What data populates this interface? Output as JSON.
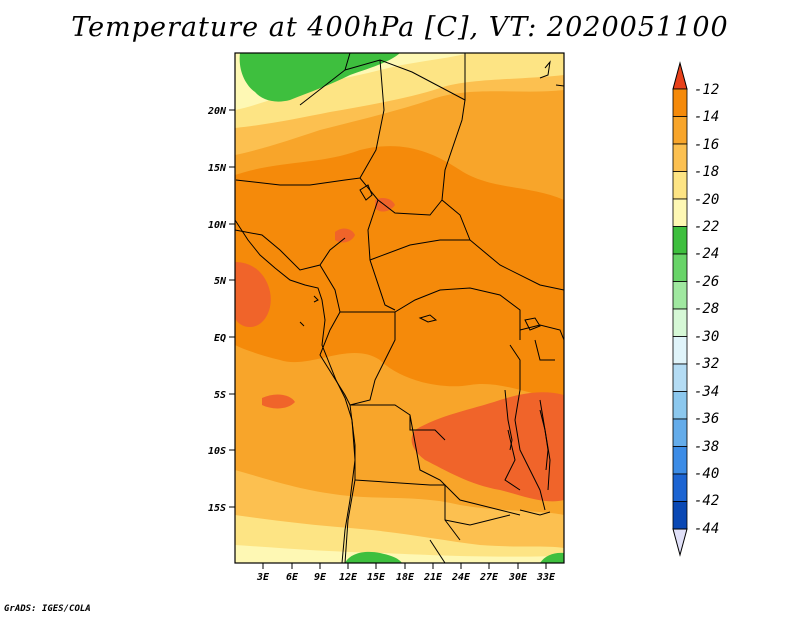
{
  "title": "Temperature at 400hPa [C], VT: 2020051100",
  "footer": "GrADS: IGES/COLA",
  "map": {
    "lat_labels": [
      "20N",
      "15N",
      "10N",
      "5N",
      "EQ",
      "5S",
      "10S",
      "15S"
    ],
    "lon_labels": [
      "3E",
      "6E",
      "9E",
      "12E",
      "15E",
      "18E",
      "21E",
      "24E",
      "27E",
      "30E",
      "33E"
    ]
  },
  "colorbar": {
    "labels": [
      "-12",
      "-14",
      "-16",
      "-18",
      "-20",
      "-22",
      "-24",
      "-26",
      "-28",
      "-30",
      "-32",
      "-34",
      "-36",
      "-38",
      "-40",
      "-42",
      "-44"
    ],
    "colors": [
      "#f0642a",
      "#f58a0a",
      "#f8a52a",
      "#fcc050",
      "#fde484",
      "#fef8b4",
      "#3ebf3e",
      "#68d468",
      "#a0e8a0",
      "#d6f8d6",
      "#e0f4fa",
      "#b4dcf4",
      "#8cc8ee",
      "#64acea",
      "#3c8ce6",
      "#1c64d2",
      "#0a48b4",
      "#0a1e78"
    ],
    "top_color": "#e8411a",
    "bottom_color": "#e0e0f8"
  }
}
